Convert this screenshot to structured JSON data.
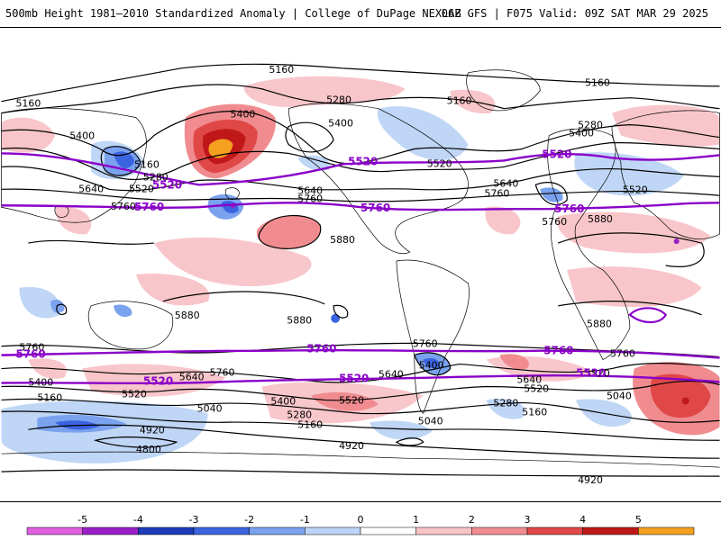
{
  "header": {
    "title": "500mb Height 1981–2010 Standardized Anomaly | College of DuPage NEXLAB",
    "run_info": "06Z GFS | F075 Valid: 09Z SAT MAR 29 2025"
  },
  "legend": {
    "ticks": [
      "-5",
      "-4",
      "-3",
      "-2",
      "-1",
      "0",
      "1",
      "2",
      "3",
      "4",
      "5"
    ],
    "bins": [
      "#e060e0",
      "#9a20c8",
      "#1e3cb8",
      "#3a64e0",
      "#7aa2ee",
      "#bcd4f6",
      "#ffffff",
      "#f8c4c8",
      "#f08c90",
      "#e04848",
      "#c01818",
      "#f5a020"
    ]
  },
  "map": {
    "black_contour_labels": [
      {
        "text": "5160"
      },
      {
        "text": "5160"
      },
      {
        "text": "5160"
      },
      {
        "text": "5280"
      },
      {
        "text": "5160"
      },
      {
        "text": "5400"
      },
      {
        "text": "5400"
      },
      {
        "text": "5400"
      },
      {
        "text": "5400"
      },
      {
        "text": "5280"
      },
      {
        "text": "5160"
      },
      {
        "text": "5280"
      },
      {
        "text": "5520"
      },
      {
        "text": "5520"
      },
      {
        "text": "5640"
      },
      {
        "text": "5640"
      },
      {
        "text": "5760"
      },
      {
        "text": "5760"
      },
      {
        "text": "5640"
      },
      {
        "text": "5760"
      },
      {
        "text": "5520"
      },
      {
        "text": "5760"
      },
      {
        "text": "5880"
      },
      {
        "text": "5880"
      },
      {
        "text": "5880"
      },
      {
        "text": "5880"
      },
      {
        "text": "5880"
      },
      {
        "text": "5760"
      },
      {
        "text": "5760"
      },
      {
        "text": "5760"
      },
      {
        "text": "5760"
      },
      {
        "text": "5640"
      },
      {
        "text": "5640"
      },
      {
        "text": "5400"
      },
      {
        "text": "5400"
      },
      {
        "text": "5520"
      },
      {
        "text": "5160"
      },
      {
        "text": "5520"
      },
      {
        "text": "5400"
      },
      {
        "text": "5280"
      },
      {
        "text": "5160"
      },
      {
        "text": "5520"
      },
      {
        "text": "5280"
      },
      {
        "text": "5160"
      },
      {
        "text": "5040"
      },
      {
        "text": "5040"
      },
      {
        "text": "5040"
      },
      {
        "text": "4920"
      },
      {
        "text": "4800"
      },
      {
        "text": "4920"
      },
      {
        "text": "4920"
      },
      {
        "text": "5640"
      },
      {
        "text": "5520"
      }
    ],
    "purple_contour_labels": [
      {
        "text": "5520"
      },
      {
        "text": "5760"
      },
      {
        "text": "5520"
      },
      {
        "text": "5760"
      },
      {
        "text": "5520"
      },
      {
        "text": "5760"
      },
      {
        "text": "5760"
      },
      {
        "text": "5760"
      },
      {
        "text": "5520"
      },
      {
        "text": "5760"
      },
      {
        "text": "5520"
      },
      {
        "text": "5520"
      }
    ]
  }
}
